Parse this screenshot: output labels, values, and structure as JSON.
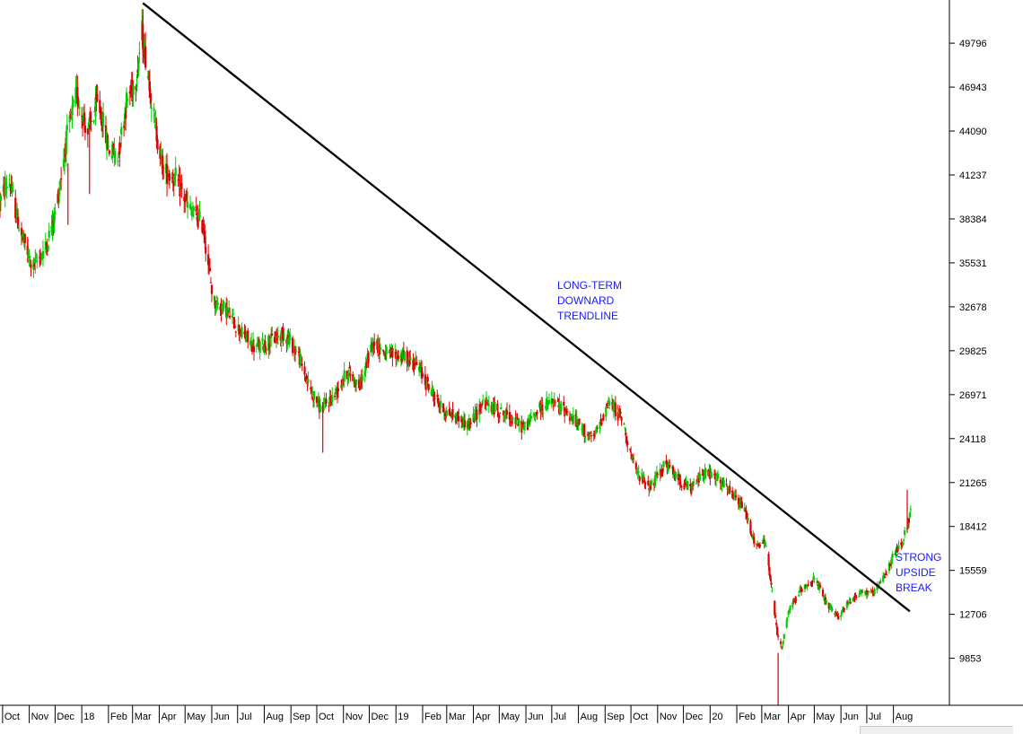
{
  "chart_data": {
    "type": "candlestick",
    "title": "",
    "xlabel": "",
    "ylabel": "",
    "ylim": [
      6800,
      52600
    ],
    "y_ticks": [
      49796,
      46943,
      44090,
      41237,
      38384,
      35531,
      32678,
      29825,
      26971,
      24118,
      21265,
      18412,
      15559,
      12706,
      9853
    ],
    "x_tick_labels": [
      "Oct",
      "Nov",
      "Dec",
      "18",
      "Feb",
      "Mar",
      "Apr",
      "May",
      "Jun",
      "Jul",
      "Aug",
      "Sep",
      "Oct",
      "Nov",
      "Dec",
      "19",
      "Feb",
      "Mar",
      "Apr",
      "May",
      "Jun",
      "Jul",
      "Aug",
      "Sep",
      "Oct",
      "Nov",
      "Dec",
      "20",
      "Feb",
      "Mar",
      "Apr",
      "May",
      "Jun",
      "Jul",
      "Aug"
    ],
    "x_tick_dates": [
      "2017-10-01",
      "2017-11-01",
      "2017-12-01",
      "2018-01-01",
      "2018-02-01",
      "2018-03-01",
      "2018-04-01",
      "2018-05-01",
      "2018-06-01",
      "2018-07-01",
      "2018-08-01",
      "2018-09-01",
      "2018-10-01",
      "2018-11-01",
      "2018-12-01",
      "2019-01-01",
      "2019-02-01",
      "2019-03-01",
      "2019-04-01",
      "2019-05-01",
      "2019-06-01",
      "2019-07-01",
      "2019-08-01",
      "2019-09-01",
      "2019-10-01",
      "2019-11-01",
      "2019-12-01",
      "2020-01-01",
      "2020-02-01",
      "2020-03-01",
      "2020-04-01",
      "2020-05-01",
      "2020-06-01",
      "2020-07-01",
      "2020-08-01"
    ],
    "x_range": [
      "2017-09-28",
      "2020-10-05"
    ],
    "up_color": "#00cc00",
    "down_color": "#dd0000",
    "price_path": [
      [
        "2017-09-28",
        39500
      ],
      [
        "2017-10-08",
        41000
      ],
      [
        "2017-10-22",
        37500
      ],
      [
        "2017-11-05",
        35200
      ],
      [
        "2017-11-20",
        36500
      ],
      [
        "2017-12-02",
        39000
      ],
      [
        "2017-12-14",
        43500
      ],
      [
        "2017-12-26",
        46500
      ],
      [
        "2018-01-08",
        44000
      ],
      [
        "2018-01-20",
        46000
      ],
      [
        "2018-02-01",
        43000
      ],
      [
        "2018-02-12",
        42500
      ],
      [
        "2018-02-22",
        46000
      ],
      [
        "2018-03-05",
        47500
      ],
      [
        "2018-03-12",
        50500
      ],
      [
        "2018-03-20",
        47500
      ],
      [
        "2018-03-27",
        44500
      ],
      [
        "2018-04-06",
        41500
      ],
      [
        "2018-04-20",
        41000
      ],
      [
        "2018-05-06",
        39000
      ],
      [
        "2018-05-22",
        38000
      ],
      [
        "2018-06-03",
        33000
      ],
      [
        "2018-06-18",
        32500
      ],
      [
        "2018-07-05",
        31000
      ],
      [
        "2018-07-22",
        30000
      ],
      [
        "2018-08-10",
        30500
      ],
      [
        "2018-08-25",
        31000
      ],
      [
        "2018-09-10",
        29500
      ],
      [
        "2018-09-22",
        27500
      ],
      [
        "2018-10-06",
        26000
      ],
      [
        "2018-10-22",
        27000
      ],
      [
        "2018-11-06",
        28500
      ],
      [
        "2018-11-20",
        27500
      ],
      [
        "2018-12-06",
        30500
      ],
      [
        "2018-12-22",
        29500
      ],
      [
        "2019-01-08",
        29500
      ],
      [
        "2019-01-24",
        29000
      ],
      [
        "2019-02-08",
        27500
      ],
      [
        "2019-02-24",
        26000
      ],
      [
        "2019-03-12",
        25500
      ],
      [
        "2019-03-28",
        25000
      ],
      [
        "2019-04-12",
        26500
      ],
      [
        "2019-04-28",
        26000
      ],
      [
        "2019-05-14",
        25500
      ],
      [
        "2019-05-30",
        24800
      ],
      [
        "2019-06-15",
        26000
      ],
      [
        "2019-07-01",
        26500
      ],
      [
        "2019-07-16",
        26000
      ],
      [
        "2019-08-01",
        25000
      ],
      [
        "2019-08-18",
        24000
      ],
      [
        "2019-09-05",
        26500
      ],
      [
        "2019-09-20",
        25500
      ],
      [
        "2019-10-06",
        22000
      ],
      [
        "2019-10-24",
        21000
      ],
      [
        "2019-11-10",
        22500
      ],
      [
        "2019-11-25",
        21500
      ],
      [
        "2019-12-10",
        20800
      ],
      [
        "2019-12-24",
        22000
      ],
      [
        "2020-01-10",
        21500
      ],
      [
        "2020-01-26",
        20500
      ],
      [
        "2020-02-10",
        19500
      ],
      [
        "2020-02-24",
        17000
      ],
      [
        "2020-03-05",
        17500
      ],
      [
        "2020-03-12",
        14500
      ],
      [
        "2020-03-19",
        11500
      ],
      [
        "2020-03-24",
        10500
      ],
      [
        "2020-04-02",
        13000
      ],
      [
        "2020-04-18",
        14500
      ],
      [
        "2020-05-02",
        15000
      ],
      [
        "2020-05-14",
        13500
      ],
      [
        "2020-05-28",
        12500
      ],
      [
        "2020-06-10",
        13500
      ],
      [
        "2020-06-24",
        14200
      ],
      [
        "2020-07-08",
        14000
      ],
      [
        "2020-07-20",
        15000
      ],
      [
        "2020-08-01",
        16500
      ],
      [
        "2020-08-12",
        17500
      ],
      [
        "2020-08-22",
        19500
      ]
    ],
    "spikes": [
      [
        "2020-03-20",
        10200,
        6800
      ],
      [
        "2018-10-08",
        26500,
        23200
      ],
      [
        "2018-01-10",
        44500,
        40000
      ],
      [
        "2017-12-16",
        42000,
        38000
      ],
      [
        "2018-03-13",
        52000,
        48500
      ],
      [
        "2020-08-17",
        20800,
        18000
      ]
    ],
    "trendline": {
      "start": [
        "2018-03-13",
        52400
      ],
      "end": [
        "2020-08-20",
        12900
      ]
    }
  },
  "annotations": {
    "trendline_label": [
      "LONG-TERM",
      "DOWNARD",
      "TRENDLINE"
    ],
    "break_label": [
      "STRONG",
      "UPSIDE",
      "BREAK"
    ],
    "color": "#1a1aff"
  }
}
